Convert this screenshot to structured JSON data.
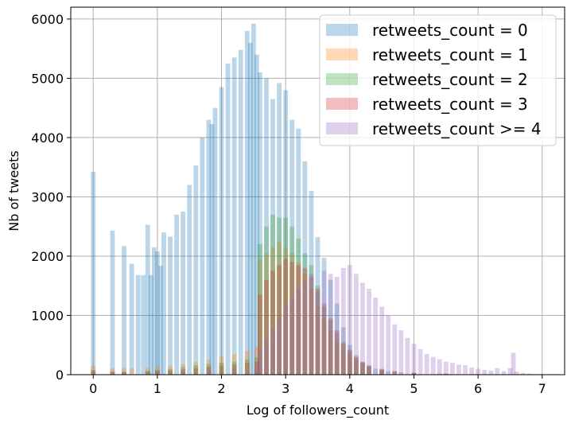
{
  "chart_data": {
    "type": "bar",
    "title": "",
    "xlabel": "Log of followers_count",
    "ylabel": "Nb of tweets",
    "xlim": [
      -0.35,
      7.35
    ],
    "ylim": [
      0,
      6200
    ],
    "xticks": [
      0,
      1,
      2,
      3,
      4,
      5,
      6,
      7
    ],
    "yticks": [
      0,
      1000,
      2000,
      3000,
      4000,
      5000,
      6000
    ],
    "grid": true,
    "legend_position": "top-right",
    "bin_width": 0.072,
    "series": [
      {
        "name": "retweets_count = 0",
        "color": "#1f77b4",
        "points": [
          [
            0.0,
            3420
          ],
          [
            0.3,
            2430
          ],
          [
            0.48,
            2170
          ],
          [
            0.6,
            1870
          ],
          [
            0.7,
            1680
          ],
          [
            0.78,
            1680
          ],
          [
            0.85,
            2530
          ],
          [
            0.9,
            1680
          ],
          [
            0.95,
            2150
          ],
          [
            1.0,
            2080
          ],
          [
            1.05,
            1840
          ],
          [
            1.1,
            2400
          ],
          [
            1.2,
            2330
          ],
          [
            1.3,
            2700
          ],
          [
            1.4,
            2750
          ],
          [
            1.5,
            3200
          ],
          [
            1.6,
            3530
          ],
          [
            1.7,
            4000
          ],
          [
            1.8,
            4300
          ],
          [
            1.85,
            4230
          ],
          [
            1.9,
            4500
          ],
          [
            2.0,
            4850
          ],
          [
            2.1,
            5250
          ],
          [
            2.2,
            5350
          ],
          [
            2.3,
            5480
          ],
          [
            2.4,
            5800
          ],
          [
            2.45,
            5600
          ],
          [
            2.5,
            5920
          ],
          [
            2.55,
            5400
          ],
          [
            2.6,
            5100
          ],
          [
            2.7,
            5000
          ],
          [
            2.8,
            4650
          ],
          [
            2.9,
            4920
          ],
          [
            3.0,
            4800
          ],
          [
            3.1,
            4300
          ],
          [
            3.2,
            4150
          ],
          [
            3.3,
            3600
          ],
          [
            3.4,
            3100
          ],
          [
            3.5,
            2320
          ],
          [
            3.6,
            1970
          ],
          [
            3.7,
            1600
          ],
          [
            3.8,
            1200
          ],
          [
            3.9,
            800
          ],
          [
            4.0,
            500
          ],
          [
            4.1,
            330
          ],
          [
            4.2,
            210
          ],
          [
            4.3,
            140
          ],
          [
            4.4,
            100
          ],
          [
            4.5,
            80
          ],
          [
            4.6,
            60
          ],
          [
            4.8,
            40
          ],
          [
            5.0,
            30
          ],
          [
            5.4,
            20
          ],
          [
            6.0,
            10
          ],
          [
            6.5,
            5
          ]
        ]
      },
      {
        "name": "retweets_count = 1",
        "color": "#ff7f0e",
        "points": [
          [
            0.0,
            150
          ],
          [
            0.3,
            110
          ],
          [
            0.48,
            110
          ],
          [
            0.6,
            110
          ],
          [
            0.85,
            120
          ],
          [
            1.0,
            140
          ],
          [
            1.2,
            150
          ],
          [
            1.4,
            180
          ],
          [
            1.6,
            220
          ],
          [
            1.8,
            250
          ],
          [
            2.0,
            300
          ],
          [
            2.2,
            350
          ],
          [
            2.4,
            400
          ],
          [
            2.55,
            470
          ],
          [
            2.6,
            1950
          ],
          [
            2.7,
            2050
          ],
          [
            2.8,
            2150
          ],
          [
            2.9,
            2250
          ],
          [
            3.0,
            2150
          ],
          [
            3.1,
            2050
          ],
          [
            3.2,
            1900
          ],
          [
            3.3,
            1700
          ],
          [
            3.4,
            1450
          ],
          [
            3.5,
            1150
          ],
          [
            3.6,
            950
          ],
          [
            3.7,
            750
          ],
          [
            3.8,
            550
          ],
          [
            3.9,
            430
          ],
          [
            4.0,
            330
          ],
          [
            4.1,
            250
          ],
          [
            4.2,
            180
          ],
          [
            4.3,
            130
          ],
          [
            4.5,
            80
          ],
          [
            4.7,
            50
          ],
          [
            5.0,
            30
          ],
          [
            5.5,
            15
          ],
          [
            6.0,
            5
          ]
        ]
      },
      {
        "name": "retweets_count = 2",
        "color": "#2ca02c",
        "points": [
          [
            0.0,
            80
          ],
          [
            0.3,
            60
          ],
          [
            0.48,
            60
          ],
          [
            0.85,
            70
          ],
          [
            1.0,
            80
          ],
          [
            1.2,
            100
          ],
          [
            1.4,
            130
          ],
          [
            1.6,
            160
          ],
          [
            1.8,
            180
          ],
          [
            2.0,
            200
          ],
          [
            2.2,
            220
          ],
          [
            2.4,
            260
          ],
          [
            2.55,
            290
          ],
          [
            2.6,
            2200
          ],
          [
            2.7,
            2500
          ],
          [
            2.8,
            2700
          ],
          [
            2.9,
            2650
          ],
          [
            3.0,
            2650
          ],
          [
            3.1,
            2500
          ],
          [
            3.2,
            2300
          ],
          [
            3.3,
            2050
          ],
          [
            3.4,
            1850
          ],
          [
            3.5,
            1500
          ],
          [
            3.6,
            1150
          ],
          [
            3.7,
            920
          ],
          [
            3.8,
            700
          ],
          [
            3.9,
            520
          ],
          [
            4.0,
            400
          ],
          [
            4.1,
            280
          ],
          [
            4.2,
            200
          ],
          [
            4.3,
            150
          ],
          [
            4.5,
            90
          ],
          [
            4.7,
            60
          ],
          [
            5.0,
            30
          ],
          [
            5.5,
            15
          ],
          [
            6.0,
            5
          ]
        ]
      },
      {
        "name": "retweets_count = 3",
        "color": "#d62728",
        "points": [
          [
            0.0,
            60
          ],
          [
            0.3,
            40
          ],
          [
            0.48,
            40
          ],
          [
            0.85,
            50
          ],
          [
            1.0,
            60
          ],
          [
            1.2,
            70
          ],
          [
            1.4,
            90
          ],
          [
            1.6,
            110
          ],
          [
            1.8,
            130
          ],
          [
            2.0,
            150
          ],
          [
            2.2,
            170
          ],
          [
            2.4,
            200
          ],
          [
            2.55,
            220
          ],
          [
            2.6,
            1350
          ],
          [
            2.7,
            1600
          ],
          [
            2.8,
            1750
          ],
          [
            2.9,
            1850
          ],
          [
            3.0,
            1950
          ],
          [
            3.1,
            1900
          ],
          [
            3.2,
            1850
          ],
          [
            3.3,
            1800
          ],
          [
            3.4,
            1650
          ],
          [
            3.5,
            1450
          ],
          [
            3.6,
            1200
          ],
          [
            3.7,
            950
          ],
          [
            3.8,
            750
          ],
          [
            3.9,
            550
          ],
          [
            4.0,
            420
          ],
          [
            4.1,
            300
          ],
          [
            4.2,
            220
          ],
          [
            4.3,
            160
          ],
          [
            4.5,
            100
          ],
          [
            4.7,
            60
          ],
          [
            5.0,
            30
          ],
          [
            5.5,
            15
          ],
          [
            6.0,
            5
          ]
        ]
      },
      {
        "name": "retweets_count >= 4",
        "color": "#9467bd",
        "points": [
          [
            0.0,
            20
          ],
          [
            0.48,
            20
          ],
          [
            1.0,
            30
          ],
          [
            1.4,
            50
          ],
          [
            1.8,
            80
          ],
          [
            2.2,
            110
          ],
          [
            2.55,
            150
          ],
          [
            2.6,
            430
          ],
          [
            2.7,
            600
          ],
          [
            2.8,
            780
          ],
          [
            2.9,
            950
          ],
          [
            3.0,
            1150
          ],
          [
            3.1,
            1300
          ],
          [
            3.2,
            1450
          ],
          [
            3.3,
            1600
          ],
          [
            3.4,
            1700
          ],
          [
            3.5,
            1400
          ],
          [
            3.6,
            1750
          ],
          [
            3.7,
            1700
          ],
          [
            3.8,
            1650
          ],
          [
            3.9,
            1800
          ],
          [
            4.0,
            1850
          ],
          [
            4.1,
            1700
          ],
          [
            4.2,
            1550
          ],
          [
            4.3,
            1450
          ],
          [
            4.4,
            1300
          ],
          [
            4.5,
            1150
          ],
          [
            4.6,
            1000
          ],
          [
            4.7,
            850
          ],
          [
            4.8,
            750
          ],
          [
            4.9,
            620
          ],
          [
            5.0,
            520
          ],
          [
            5.1,
            430
          ],
          [
            5.2,
            350
          ],
          [
            5.3,
            300
          ],
          [
            5.4,
            260
          ],
          [
            5.5,
            220
          ],
          [
            5.6,
            200
          ],
          [
            5.7,
            170
          ],
          [
            5.8,
            160
          ],
          [
            5.9,
            120
          ],
          [
            6.0,
            100
          ],
          [
            6.1,
            80
          ],
          [
            6.2,
            70
          ],
          [
            6.3,
            110
          ],
          [
            6.4,
            60
          ],
          [
            6.5,
            110
          ],
          [
            6.55,
            370
          ],
          [
            6.6,
            50
          ],
          [
            6.7,
            30
          ],
          [
            6.8,
            20
          ],
          [
            7.0,
            10
          ]
        ]
      }
    ]
  }
}
